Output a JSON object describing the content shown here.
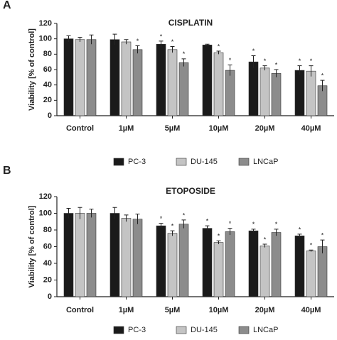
{
  "chart_data": [
    {
      "type": "bar",
      "panel_label": "A",
      "title": "CISPLATIN",
      "y_label": "Viability [% of control]",
      "categories": [
        "Control",
        "1µM",
        "5µM",
        "10µM",
        "20µM",
        "40µM"
      ],
      "series": [
        {
          "name": "PC-3",
          "color": "#1a1a1a",
          "values": [
            100,
            99,
            93,
            92,
            70,
            59
          ],
          "errors": [
            4,
            7,
            4,
            1,
            8,
            6
          ],
          "annotations": [
            null,
            null,
            "*",
            null,
            "*",
            "*"
          ]
        },
        {
          "name": "DU-145",
          "color": "#c4c4c4",
          "values": [
            99,
            96,
            86,
            82,
            62,
            58
          ],
          "errors": [
            3,
            3,
            4,
            2,
            3,
            7
          ],
          "annotations": [
            null,
            null,
            "*",
            "*",
            "*",
            "*"
          ]
        },
        {
          "name": "LNCaP",
          "color": "#8c8c8c",
          "values": [
            99,
            86,
            69,
            59,
            55,
            39
          ],
          "errors": [
            6,
            5,
            5,
            7,
            5,
            7
          ],
          "annotations": [
            null,
            "*",
            "*",
            "*",
            "*",
            "*"
          ]
        }
      ],
      "ylim": [
        0,
        120
      ],
      "yticks": [
        0,
        20,
        40,
        60,
        80,
        100,
        120
      ]
    },
    {
      "type": "bar",
      "panel_label": "B",
      "title": "ETOPOSIDE",
      "y_label": "Viability [% of control]",
      "categories": [
        "Control",
        "1µM",
        "5µM",
        "10µM",
        "20µM",
        "40µM"
      ],
      "series": [
        {
          "name": "PC-3",
          "color": "#1a1a1a",
          "values": [
            100,
            100,
            85,
            82,
            79,
            73
          ],
          "errors": [
            6,
            7,
            3,
            3,
            2,
            2
          ],
          "annotations": [
            null,
            null,
            "*",
            "*",
            "*",
            "*"
          ]
        },
        {
          "name": "DU-145",
          "color": "#c4c4c4",
          "values": [
            100,
            94,
            76,
            65,
            61,
            55
          ],
          "errors": [
            7,
            4,
            3,
            2,
            2,
            1
          ],
          "annotations": [
            null,
            null,
            "*",
            "*",
            "*",
            "*"
          ]
        },
        {
          "name": "LNCaP",
          "color": "#8c8c8c",
          "values": [
            100,
            93,
            87,
            78,
            77,
            60
          ],
          "errors": [
            5,
            6,
            5,
            4,
            4,
            8
          ],
          "annotations": [
            null,
            null,
            "*",
            "*",
            "*",
            "*"
          ]
        }
      ],
      "ylim": [
        0,
        120
      ],
      "yticks": [
        0,
        20,
        40,
        60,
        80,
        100,
        120
      ]
    }
  ]
}
